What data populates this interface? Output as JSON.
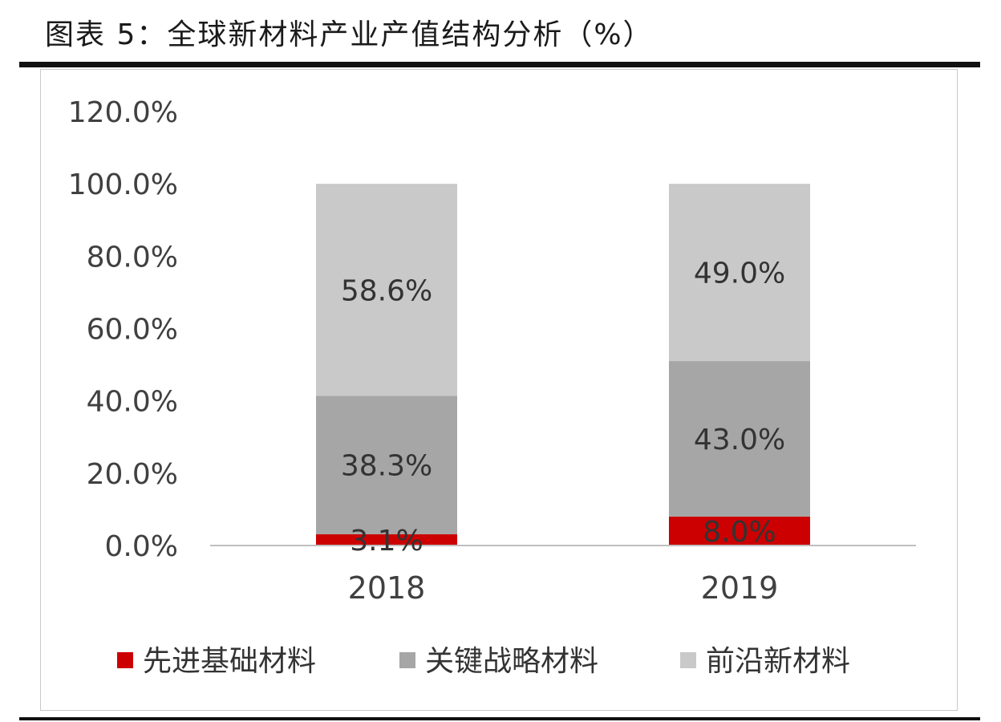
{
  "title": "图表 5：全球新材料产业产值结构分析（%）",
  "chart_data": {
    "type": "bar",
    "stacked": true,
    "categories": [
      "2018",
      "2019"
    ],
    "series": [
      {
        "name": "先进基础材料",
        "values": [
          3.1,
          8.0
        ],
        "labels": [
          "3.1%",
          "8.0%"
        ],
        "color": "#cc0000"
      },
      {
        "name": "关键战略材料",
        "values": [
          38.3,
          43.0
        ],
        "labels": [
          "38.3%",
          "43.0%"
        ],
        "color": "#a6a6a6"
      },
      {
        "name": "前沿新材料",
        "values": [
          58.6,
          49.0
        ],
        "labels": [
          "58.6%",
          "49.0%"
        ],
        "color": "#c9c9c9"
      }
    ],
    "ylim": [
      0,
      120
    ],
    "yticks": [
      "0.0%",
      "20.0%",
      "40.0%",
      "60.0%",
      "80.0%",
      "100.0%",
      "120.0%"
    ],
    "grid": false,
    "legend_position": "bottom"
  }
}
